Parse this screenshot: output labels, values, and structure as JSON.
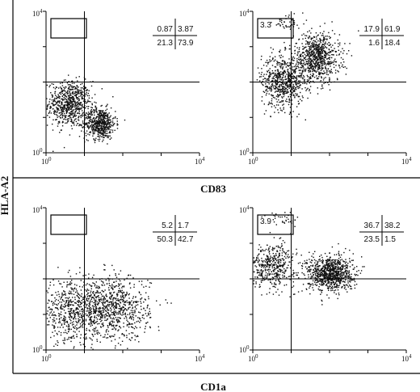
{
  "figure": {
    "y_axis_label": "HLA-A2",
    "top_x_label": "CD83",
    "bottom_x_label": "CD1a"
  },
  "chart_data": [
    {
      "type": "scatter",
      "panel": "top-left",
      "xlabel": "CD83",
      "ylabel": "HLA-A2",
      "xlim": [
        1,
        10000
      ],
      "ylim": [
        1,
        10000
      ],
      "log_scale": true,
      "x_tick_labels": [
        "10^0",
        "10^4"
      ],
      "y_tick_labels": [
        "10^0",
        "10^4"
      ],
      "quadrant_divider": {
        "x": 10,
        "y": 100
      },
      "quadrants": {
        "upper_left": "0.87",
        "upper_right": "3.87",
        "lower_left": "21.3",
        "lower_right": "73.9"
      },
      "gate_label": "",
      "clusters": [
        {
          "x_center": 4,
          "y_center": 25,
          "x_spread_decades": 0.28,
          "y_spread_decades": 0.32,
          "count": 700
        },
        {
          "x_center": 25,
          "y_center": 7,
          "x_spread_decades": 0.2,
          "y_spread_decades": 0.22,
          "count": 550
        }
      ]
    },
    {
      "type": "scatter",
      "panel": "top-right",
      "xlabel": "CD83",
      "ylabel": "HLA-A2",
      "xlim": [
        1,
        10000
      ],
      "ylim": [
        1,
        10000
      ],
      "log_scale": true,
      "x_tick_labels": [
        "10^0",
        "10^4"
      ],
      "y_tick_labels": [
        "10^0",
        "10^4"
      ],
      "quadrant_divider": {
        "x": 10,
        "y": 100
      },
      "quadrants": {
        "upper_left": "17.9",
        "upper_right": "61.9",
        "lower_left": "1.6",
        "lower_right": "18.4"
      },
      "gate_label": "3.3",
      "clusters": [
        {
          "x_center": 6,
          "y_center": 110,
          "x_spread_decades": 0.28,
          "y_spread_decades": 0.38,
          "count": 650
        },
        {
          "x_center": 45,
          "y_center": 500,
          "x_spread_decades": 0.3,
          "y_spread_decades": 0.35,
          "count": 800
        },
        {
          "x_center": 8,
          "y_center": 5000,
          "x_spread_decades": 0.2,
          "y_spread_decades": 0.12,
          "count": 40
        }
      ]
    },
    {
      "type": "scatter",
      "panel": "bottom-left",
      "xlabel": "CD1a",
      "ylabel": "HLA-A2",
      "xlim": [
        1,
        10000
      ],
      "ylim": [
        1,
        10000
      ],
      "log_scale": true,
      "x_tick_labels": [
        "10^0",
        "10^4"
      ],
      "y_tick_labels": [
        "10^0",
        "10^4"
      ],
      "quadrant_divider": {
        "x": 10,
        "y": 100
      },
      "quadrants": {
        "upper_left": "5.2",
        "upper_right": "1.7",
        "lower_left": "50.3",
        "lower_right": "42.7"
      },
      "gate_label": "",
      "clusters": [
        {
          "x_center": 5,
          "y_center": 12,
          "x_spread_decades": 0.45,
          "y_spread_decades": 0.42,
          "count": 650
        },
        {
          "x_center": 60,
          "y_center": 15,
          "x_spread_decades": 0.45,
          "y_spread_decades": 0.45,
          "count": 750
        }
      ]
    },
    {
      "type": "scatter",
      "panel": "bottom-right",
      "xlabel": "CD1a",
      "ylabel": "HLA-A2",
      "xlim": [
        1,
        10000
      ],
      "ylim": [
        1,
        10000
      ],
      "log_scale": true,
      "x_tick_labels": [
        "10^0",
        "10^4"
      ],
      "y_tick_labels": [
        "10^0",
        "10^4"
      ],
      "quadrant_divider": {
        "x": 10,
        "y": 100
      },
      "quadrants": {
        "upper_left": "36.7",
        "upper_right": "38.2",
        "lower_left": "23.5",
        "lower_right": "1.5"
      },
      "gate_label": "3.9",
      "clusters": [
        {
          "x_center": 3,
          "y_center": 250,
          "x_spread_decades": 0.3,
          "y_spread_decades": 0.3,
          "count": 450
        },
        {
          "x_center": 100,
          "y_center": 150,
          "x_spread_decades": 0.3,
          "y_spread_decades": 0.25,
          "count": 900
        },
        {
          "x_center": 6,
          "y_center": 5000,
          "x_spread_decades": 0.2,
          "y_spread_decades": 0.12,
          "count": 35
        }
      ]
    }
  ]
}
